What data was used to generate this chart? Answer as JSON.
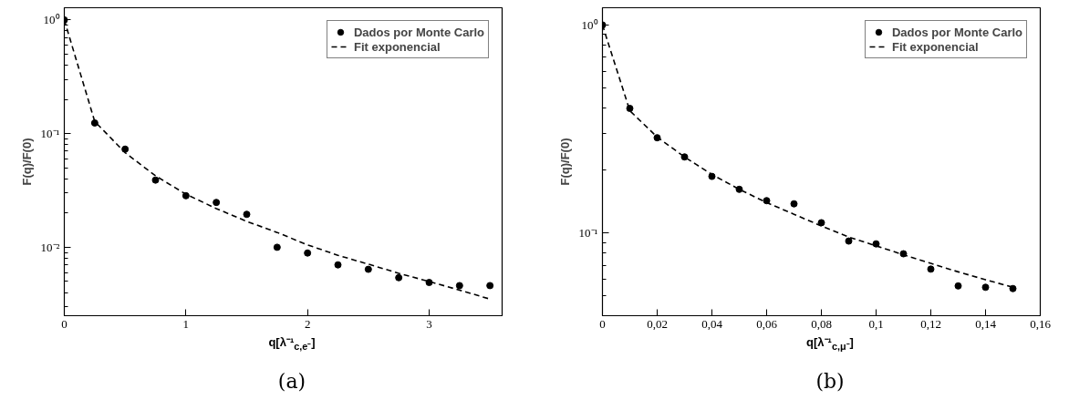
{
  "chart_data": [
    {
      "type": "scatter",
      "xlabel": "q[λ⁻¹$_{c,e⁻}$]",
      "ylabel": "F(q)/F(0)",
      "log": "y",
      "legend": "top right",
      "annotations": [
        "(a)"
      ],
      "xlim": [
        0,
        3.6
      ],
      "xticks": [
        0,
        1,
        2,
        3
      ],
      "ylim": [
        0.0025,
        1.28
      ],
      "yticks": [
        {
          "value": 1,
          "label": "10⁰"
        },
        {
          "value": 0.1,
          "label": "10⁻¹"
        },
        {
          "value": 0.01,
          "label": "10⁻²"
        }
      ],
      "x": [
        0,
        0.25,
        0.5,
        0.75,
        1.0,
        1.25,
        1.5,
        1.75,
        2.0,
        2.25,
        2.5,
        2.75,
        3.0,
        3.25,
        3.5
      ],
      "series": [
        {
          "name": "Dados por Monte Carlo",
          "marker": "circle",
          "color": "#000000",
          "values": [
            1.0,
            0.124,
            0.073,
            0.039,
            0.0284,
            0.0248,
            0.0195,
            0.01,
            0.0089,
            0.007,
            0.0064,
            0.0054,
            0.0049,
            0.0046,
            0.0046
          ]
        },
        {
          "name": "Fit exponencial",
          "type": "line",
          "line_style": "dashed",
          "color": "#000000",
          "values": [
            1.0,
            0.128,
            0.068,
            0.0425,
            0.0293,
            0.0219,
            0.0169,
            0.0135,
            0.0105,
            0.0085,
            0.0071,
            0.0059,
            0.005,
            0.0042,
            0.0035
          ]
        }
      ]
    },
    {
      "type": "scatter",
      "xlabel": "q[λ⁻¹$_{c,μ⁻}$]",
      "ylabel": "F(q)/F(0)",
      "log": "y",
      "legend": "top right",
      "annotations": [
        "(b)"
      ],
      "xlim": [
        0,
        0.16
      ],
      "xticks": [
        0,
        {
          "value": 0.02,
          "label": "0,02"
        },
        {
          "value": 0.04,
          "label": "0,04"
        },
        {
          "value": 0.06,
          "label": "0,06"
        },
        {
          "value": 0.08,
          "label": "0,08"
        },
        {
          "value": 0.1,
          "label": "0,1"
        },
        {
          "value": 0.12,
          "label": "0,12"
        },
        {
          "value": 0.14,
          "label": "0,14"
        },
        {
          "value": 0.16,
          "label": "0,16"
        }
      ],
      "ylim": [
        0.04,
        1.21
      ],
      "yticks": [
        {
          "value": 1,
          "label": "10⁰"
        },
        {
          "value": 0.1,
          "label": "10⁻¹"
        }
      ],
      "x": [
        0,
        0.01,
        0.02,
        0.03,
        0.04,
        0.05,
        0.06,
        0.07,
        0.08,
        0.09,
        0.1,
        0.11,
        0.12,
        0.13,
        0.14,
        0.15
      ],
      "series": [
        {
          "name": "Dados por Monte Carlo",
          "marker": "circle",
          "color": "#000000",
          "values": [
            1.0,
            0.397,
            0.287,
            0.232,
            0.187,
            0.162,
            0.143,
            0.138,
            0.112,
            0.0914,
            0.0886,
            0.0794,
            0.067,
            0.0556,
            0.0548,
            0.054
          ]
        },
        {
          "name": "Fit exponencial",
          "type": "line",
          "line_style": "dashed",
          "color": "#000000",
          "values": [
            1.0,
            0.387,
            0.289,
            0.232,
            0.191,
            0.162,
            0.14,
            0.123,
            0.108,
            0.0955,
            0.0867,
            0.0785,
            0.0714,
            0.065,
            0.0596,
            0.0548
          ]
        }
      ]
    }
  ]
}
